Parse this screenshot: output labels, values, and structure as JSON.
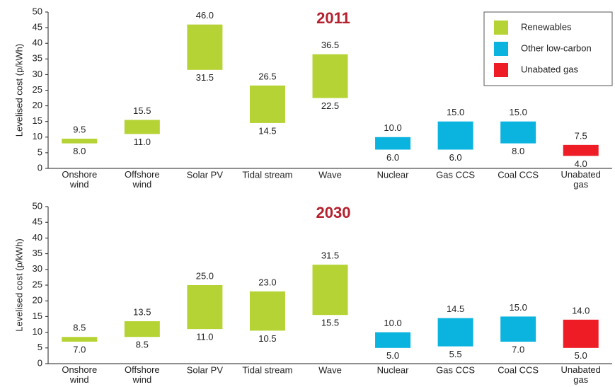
{
  "chart_data": [
    {
      "type": "range_bar",
      "title": "2011",
      "ylabel": "Levelised cost (p/kWh)",
      "categories": [
        "Onshore\nwind",
        "Offshore\nwind",
        "Solar PV",
        "Tidal stream",
        "Wave",
        "Nuclear",
        "Gas CCS",
        "Coal CCS",
        "Unabated\ngas"
      ],
      "low": [
        8,
        11,
        31.5,
        14.5,
        22.5,
        6,
        6,
        8,
        4
      ],
      "low_labels": [
        "8.0",
        "11.0",
        "31.5",
        "14.5",
        "22.5",
        "6.0",
        "6.0",
        "8.0",
        "4.0"
      ],
      "high": [
        9.5,
        15.5,
        46,
        26.5,
        36.5,
        10,
        15,
        15,
        7.5
      ],
      "high_labels": [
        "9.5",
        "15.5",
        "46.0",
        "26.5",
        "36.5",
        "10.0",
        "15.0",
        "15.0",
        "7.5"
      ],
      "colors": [
        "#b5d334",
        "#b5d334",
        "#b5d334",
        "#b5d334",
        "#b5d334",
        "#0bb3df",
        "#0bb3df",
        "#0bb3df",
        "#ee1c25"
      ],
      "legend": [
        {
          "name": "Renewables",
          "color": "#b5d334"
        },
        {
          "name": "Other low-carbon",
          "color": "#0bb3df"
        },
        {
          "name": "Unabated gas",
          "color": "#ee1c25"
        }
      ],
      "legend_position": "top-right",
      "ylim": [
        0,
        50
      ],
      "yticks": [
        0,
        5,
        10,
        15,
        20,
        25,
        30,
        35,
        40,
        45,
        50
      ]
    },
    {
      "type": "range_bar",
      "title": "2030",
      "ylabel": "Levelised cost (p/kWh)",
      "categories": [
        "Onshore\nwind",
        "Offshore\nwind",
        "Solar PV",
        "Tidal stream",
        "Wave",
        "Nuclear",
        "Gas CCS",
        "Coal CCS",
        "Unabated\ngas"
      ],
      "low": [
        7,
        8.5,
        11,
        10.5,
        15.5,
        5,
        5.5,
        7,
        5
      ],
      "low_labels": [
        "7.0",
        "8.5",
        "11.0",
        "10.5",
        "15.5",
        "5.0",
        "5.5",
        "7.0",
        "5.0"
      ],
      "high": [
        8.5,
        13.5,
        25,
        23,
        31.5,
        10,
        14.5,
        15,
        14
      ],
      "high_labels": [
        "8.5",
        "13.5",
        "25.0",
        "23.0",
        "31.5",
        "10.0",
        "14.5",
        "15.0",
        "14.0"
      ],
      "colors": [
        "#b5d334",
        "#b5d334",
        "#b5d334",
        "#b5d334",
        "#b5d334",
        "#0bb3df",
        "#0bb3df",
        "#0bb3df",
        "#ee1c25"
      ],
      "ylim": [
        0,
        50
      ],
      "yticks": [
        0,
        5,
        10,
        15,
        20,
        25,
        30,
        35,
        40,
        45,
        50
      ]
    }
  ]
}
